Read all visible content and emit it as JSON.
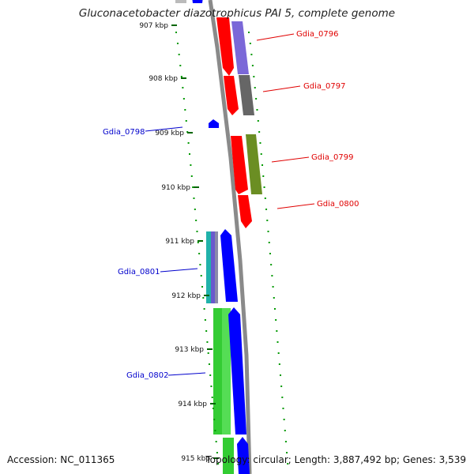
{
  "title": "Gluconacetobacter diazotrophicus PAI 5, complete genome",
  "footer": {
    "accession": "Accession: NC_011365",
    "topology": "Topology: circular; Length: 3,887,492 bp; Genes: 3,539"
  },
  "ticks": [
    "907 kbp",
    "908 kbp",
    "909 kbp",
    "910 kbp",
    "911 kbp",
    "912 kbp",
    "913 kbp",
    "914 kbp",
    "915 kbp"
  ],
  "genes": [
    {
      "name": "Gdia_0796",
      "strand": "forward",
      "color": "#e00000"
    },
    {
      "name": "Gdia_0797",
      "strand": "forward",
      "color": "#e00000"
    },
    {
      "name": "Gdia_0798",
      "strand": "reverse",
      "color": "#0000cc"
    },
    {
      "name": "Gdia_0799",
      "strand": "forward",
      "color": "#e00000"
    },
    {
      "name": "Gdia_0800",
      "strand": "forward",
      "color": "#e00000"
    },
    {
      "name": "Gdia_0801",
      "strand": "reverse",
      "color": "#0000cc"
    },
    {
      "name": "Gdia_0802",
      "strand": "reverse",
      "color": "#0000cc"
    }
  ],
  "colors": {
    "forward_cds": "#ff0000",
    "reverse_cds": "#0000ff",
    "backbone": "#888888",
    "gc_dots": "#009900",
    "purple_feature": "#7b68d8",
    "gray_feature": "#666666",
    "olive_feature": "#6b8e23",
    "green_feature": "#33cc33",
    "cyan_feature": "#20b2aa"
  }
}
